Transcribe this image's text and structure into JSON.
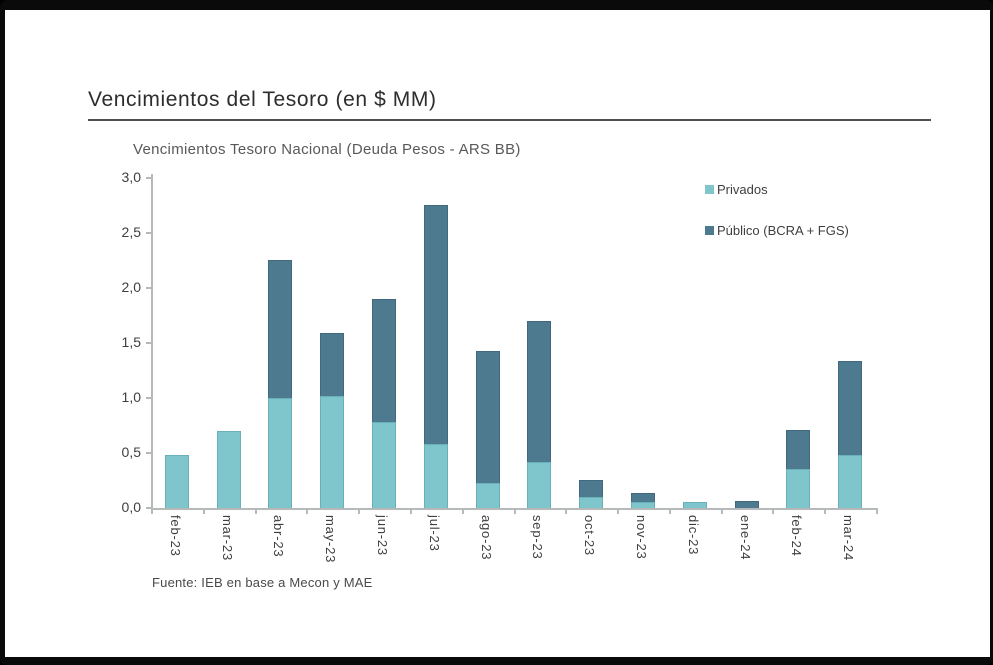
{
  "page": {
    "title": "Vencimientos del Tesoro (en $ MM)"
  },
  "chart_data": {
    "type": "bar",
    "stacked": true,
    "title": "Vencimientos Tesoro Nacional (Deuda Pesos - ARS BB)",
    "categories": [
      "feb-23",
      "mar-23",
      "abr-23",
      "may-23",
      "jun-23",
      "jul-23",
      "ago-23",
      "sep-23",
      "oct-23",
      "nov-23",
      "dic-23",
      "ene-24",
      "feb-24",
      "mar-24"
    ],
    "series": [
      {
        "name": "Privados",
        "color": "#7ec6cb",
        "border_color": "#69b0b8",
        "values": [
          0.48,
          0.7,
          1.0,
          1.02,
          0.78,
          0.58,
          0.23,
          0.42,
          0.1,
          0.05,
          0.05,
          0.0,
          0.35,
          0.48
        ]
      },
      {
        "name": "Público (BCRA + FGS)",
        "color": "#4e7a90",
        "border_color": "#41687d",
        "values": [
          0.0,
          0.0,
          1.25,
          0.57,
          1.12,
          2.17,
          1.2,
          1.28,
          0.15,
          0.08,
          0.0,
          0.06,
          0.35,
          0.85
        ]
      }
    ],
    "totals": [
      0.48,
      0.7,
      2.25,
      1.59,
      1.9,
      2.75,
      1.43,
      1.7,
      0.25,
      0.13,
      0.05,
      0.06,
      0.7,
      1.33
    ],
    "ylim": [
      0,
      3.0
    ],
    "ytick_step": 0.5,
    "ytick_labels": [
      "0,0",
      "0,5",
      "1,0",
      "1,5",
      "2,0",
      "2,5",
      "3,0"
    ],
    "grid": false,
    "legend_position": "top-right",
    "xlabel": "",
    "ylabel": "",
    "source": "Fuente: IEB en base a Mecon y MAE"
  },
  "colors": {
    "axis": "#b5b9b9",
    "title_text": "#2d2d2d",
    "rule": "#4f4f4f"
  }
}
